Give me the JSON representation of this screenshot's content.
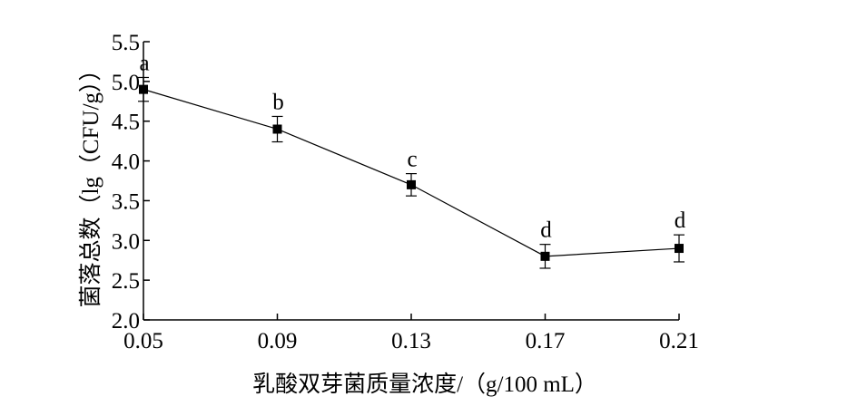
{
  "chart_data": {
    "type": "line",
    "title": "",
    "xlabel": "乳酸双芽菌质量浓度/（g/100 mL）",
    "ylabel": "菌落总数（lg（CFU/g））",
    "x": [
      0.05,
      0.09,
      0.13,
      0.17,
      0.21
    ],
    "x_tick_labels": [
      "0.05",
      "0.09",
      "0.13",
      "0.17",
      "0.21"
    ],
    "y_tick_labels": [
      "2.0",
      "2.5",
      "3.0",
      "3.5",
      "4.0",
      "4.5",
      "5.0",
      "5.5"
    ],
    "xlim": [
      0.05,
      0.21
    ],
    "ylim": [
      2.0,
      5.5
    ],
    "grid": false,
    "series": [
      {
        "values": [
          4.9,
          4.4,
          3.7,
          2.8,
          2.9
        ],
        "error": [
          0.15,
          0.16,
          0.14,
          0.15,
          0.17
        ],
        "point_labels": [
          "a",
          "b",
          "c",
          "d",
          "d"
        ],
        "marker": "square",
        "color": "#000000"
      }
    ]
  }
}
